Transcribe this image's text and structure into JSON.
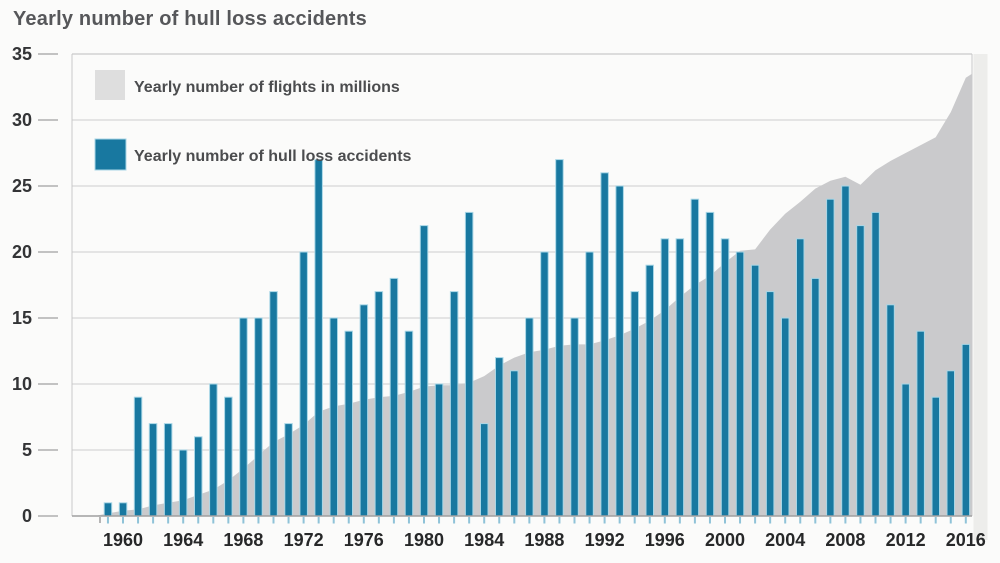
{
  "title": "Yearly number of hull loss accidents",
  "legend": [
    {
      "label": "Yearly number of flights in millions",
      "color": "#dedede",
      "swatch": "gray-square"
    },
    {
      "label": "Yearly number of hull loss accidents",
      "color": "#1878a0",
      "swatch": "teal-square"
    }
  ],
  "colors": {
    "bar": "#1878a0",
    "bar_outline": "#a8d6e6",
    "area": "#cacacc",
    "gridline": "#d6d6d6",
    "plot_border": "#c9c9c9",
    "axis_line": "#a0a0a0",
    "y_tick_dash": "#c2c2c2",
    "x_tick": "#8fc3d8",
    "edge_band": "#ededeb",
    "background": "#fbfbfa"
  },
  "chart_data": {
    "type": "bar",
    "subtype": "bar-with-area-overlay",
    "title": "Yearly number of hull loss accidents",
    "xlabel": "",
    "ylabel": "",
    "ylim": [
      0,
      35
    ],
    "yticks": [
      0,
      5,
      10,
      15,
      20,
      25,
      30,
      35
    ],
    "xtick_labels": [
      1960,
      1964,
      1968,
      1972,
      1976,
      1980,
      1984,
      1988,
      1992,
      1996,
      2000,
      2004,
      2008,
      2012,
      2016
    ],
    "grid": true,
    "legend_position": "top-left-inside",
    "x": [
      1959,
      1960,
      1961,
      1962,
      1963,
      1964,
      1965,
      1966,
      1967,
      1968,
      1969,
      1970,
      1971,
      1972,
      1973,
      1974,
      1975,
      1976,
      1977,
      1978,
      1979,
      1980,
      1981,
      1982,
      1983,
      1984,
      1985,
      1986,
      1987,
      1988,
      1989,
      1990,
      1991,
      1992,
      1993,
      1994,
      1995,
      1996,
      1997,
      1998,
      1999,
      2000,
      2001,
      2002,
      2003,
      2004,
      2005,
      2006,
      2007,
      2008,
      2009,
      2010,
      2011,
      2012,
      2013,
      2014,
      2015,
      2016
    ],
    "series": [
      {
        "name": "Yearly number of flights in millions",
        "type": "area",
        "values": [
          0.2,
          0.4,
          0.5,
          0.8,
          1.0,
          1.2,
          1.6,
          2.0,
          2.7,
          3.6,
          4.6,
          5.6,
          6.2,
          6.9,
          7.9,
          8.3,
          8.5,
          8.8,
          9.0,
          9.1,
          9.4,
          9.8,
          9.9,
          9.9,
          10.1,
          10.6,
          11.4,
          12.0,
          12.4,
          12.6,
          12.9,
          13.0,
          13.0,
          13.3,
          13.7,
          14.2,
          14.8,
          15.6,
          16.6,
          17.5,
          18.2,
          19.2,
          20.1,
          20.2,
          21.7,
          22.9,
          23.8,
          24.8,
          25.4,
          25.7,
          25.1,
          26.2,
          26.9,
          27.5,
          28.1,
          28.7,
          30.6,
          33.2
        ]
      },
      {
        "name": "Yearly number of hull loss accidents",
        "type": "bar",
        "values": [
          1,
          1,
          9,
          7,
          7,
          5,
          6,
          10,
          9,
          15,
          15,
          17,
          7,
          20,
          27,
          15,
          14,
          16,
          17,
          18,
          14,
          22,
          10,
          17,
          23,
          7,
          12,
          11,
          15,
          20,
          27,
          15,
          20,
          26,
          25,
          17,
          19,
          21,
          21,
          24,
          23,
          21,
          20,
          19,
          17,
          15,
          21,
          18,
          24,
          25,
          22,
          23,
          16,
          10,
          14,
          9,
          11,
          13
        ]
      }
    ]
  }
}
